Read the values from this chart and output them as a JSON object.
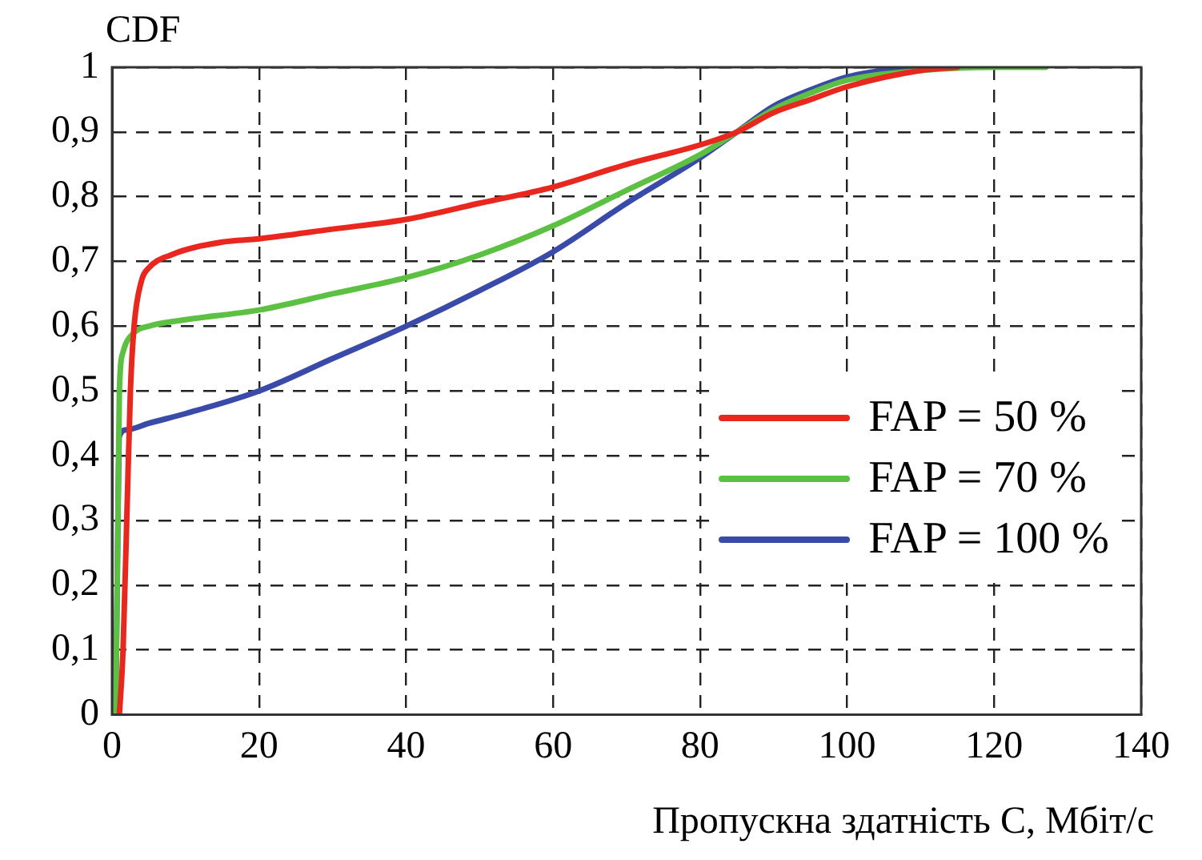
{
  "chart_data": {
    "type": "line",
    "ylabel": "CDF",
    "xlabel": "Пропускна здатність C, Мбіт/с",
    "xlim": [
      0,
      140
    ],
    "xticks": [
      0,
      20,
      40,
      60,
      80,
      100,
      120,
      140
    ],
    "ylim": [
      0,
      1
    ],
    "yticks": [
      0,
      {
        "value": 0.1,
        "label": "0,1"
      },
      {
        "value": 0.2,
        "label": "0,2"
      },
      {
        "value": 0.3,
        "label": "0,3"
      },
      {
        "value": 0.4,
        "label": "0,4"
      },
      {
        "value": 0.5,
        "label": "0,5"
      },
      {
        "value": 0.6,
        "label": "0,6"
      },
      {
        "value": 0.7,
        "label": "0,7"
      },
      {
        "value": 0.8,
        "label": "0,8"
      },
      {
        "value": 0.9,
        "label": "0,9"
      },
      1
    ],
    "grid": true,
    "legend": "right",
    "line_style": "solid",
    "marker": "none",
    "series": [
      {
        "name": "FAP = 50 %",
        "color": "#e8281e",
        "x": [
          1,
          1.5,
          2,
          2.5,
          3,
          4,
          5,
          8,
          15,
          20,
          30,
          40,
          50,
          60,
          70,
          80,
          85,
          90,
          95,
          100,
          110,
          115
        ],
        "values": [
          0,
          0.1,
          0.3,
          0.5,
          0.6,
          0.67,
          0.69,
          0.71,
          0.73,
          0.735,
          0.75,
          0.765,
          0.79,
          0.815,
          0.85,
          0.88,
          0.9,
          0.93,
          0.95,
          0.97,
          0.995,
          1
        ]
      },
      {
        "name": "FAP = 70 %",
        "color": "#5cc043",
        "x": [
          0.5,
          0.8,
          1,
          1.5,
          3,
          5,
          10,
          20,
          30,
          40,
          50,
          60,
          70,
          80,
          85,
          90,
          95,
          100,
          110,
          120,
          127
        ],
        "values": [
          0,
          0.3,
          0.5,
          0.56,
          0.59,
          0.6,
          0.61,
          0.625,
          0.65,
          0.675,
          0.71,
          0.755,
          0.81,
          0.865,
          0.9,
          0.935,
          0.96,
          0.98,
          0.995,
          1,
          1
        ]
      },
      {
        "name": "FAP = 100 %",
        "color": "#3a4aa8",
        "x": [
          0.5,
          0.8,
          1,
          2,
          5,
          10,
          20,
          30,
          40,
          50,
          60,
          70,
          80,
          85,
          90,
          95,
          100,
          105,
          112
        ],
        "values": [
          0,
          0.3,
          0.43,
          0.44,
          0.45,
          0.465,
          0.5,
          0.55,
          0.6,
          0.655,
          0.715,
          0.79,
          0.86,
          0.9,
          0.94,
          0.965,
          0.985,
          0.995,
          1
        ]
      }
    ]
  }
}
